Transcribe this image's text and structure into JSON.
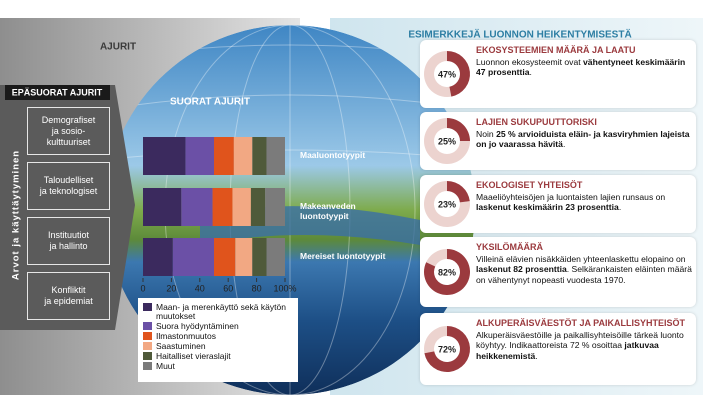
{
  "header": {
    "title": "AJURIT"
  },
  "indirect_drivers": {
    "title": "EPÄSUORAT AJURIT",
    "axis_label": "Arvot ja käyttäytyminen",
    "items": [
      [
        "Demografiset",
        "ja sosio-",
        "kulttuuriset"
      ],
      [
        "Taloudelliset",
        "ja teknologiset"
      ],
      [
        "Instituutiot",
        "ja hallinto"
      ],
      [
        "Konfliktit",
        "ja epidemiat"
      ]
    ]
  },
  "chart_data": {
    "type": "bar",
    "orientation": "horizontal",
    "stacked": true,
    "title": "SUORAT AJURIT",
    "categories": [
      "Maaluontotyypit",
      "Makeanveden luontotyypit",
      "Mereiset luontotyypit"
    ],
    "series": [
      {
        "name": "Maan- ja merenkäyttö sekä käytön muutokset",
        "color": "#3b2a5e",
        "values": [
          30,
          27,
          21
        ]
      },
      {
        "name": "Suora hyödyntäminen",
        "color": "#6b50a6",
        "values": [
          20,
          22,
          29
        ]
      },
      {
        "name": "Ilmastonmuutos",
        "color": "#e0541c",
        "values": [
          14,
          14,
          15
        ]
      },
      {
        "name": "Saastuminen",
        "color": "#f2a883",
        "values": [
          13,
          13,
          12
        ]
      },
      {
        "name": "Haitalliset vieraslajit",
        "color": "#4f5a3a",
        "values": [
          10,
          10,
          10
        ]
      },
      {
        "name": "Muut",
        "color": "#7b7b7b",
        "values": [
          13,
          14,
          13
        ]
      }
    ],
    "xlim": [
      0,
      100
    ],
    "xticks": [
      0,
      20,
      40,
      60,
      80,
      {
        "value": 100,
        "label": "100%"
      }
    ]
  },
  "examples": {
    "title": "ESIMERKKEJÄ LUONNON HEIKENTYMISESTÄ",
    "color": "#9b3a3e",
    "track_color": "#ecd3cf",
    "items": [
      {
        "heading": "EKOSYSTEEMIEN MÄÄRÄ JA LAATU",
        "value": 47,
        "value_label": "47%",
        "text": [
          "Luonnon ekosysteemit ovat ",
          "vähentyneet keskimäärin 47 prosenttia",
          "."
        ]
      },
      {
        "heading": "LAJIEN SUKUPUUTTORISKI",
        "value": 25,
        "value_label": "25%",
        "text": [
          "Noin ",
          "25 % arvioiduista eläin- ja kasviryhmien lajeista on jo vaarassa hävitä",
          "."
        ]
      },
      {
        "heading": "EKOLOGISET YHTEISÖT",
        "value": 23,
        "value_label": "23%",
        "text": [
          "Maaeliöyhteisöjen ja luontaisten lajien runsaus on ",
          "laskenut keskimäärin 23 prosenttia",
          "."
        ]
      },
      {
        "heading": "YKSILÖMÄÄRÄ",
        "value": 82,
        "value_label": "82%",
        "text": [
          "Villeinä elävien nisäkkäiden yhteenlaskettu elopaino on ",
          "laskenut 82 prosenttia",
          ". Selkärankaisten eläinten määrä on vähentynyt nopeasti vuodesta 1970."
        ]
      },
      {
        "heading": "ALKUPERÄISVÄESTÖT JA PAIKALLISYHTEISÖT",
        "value": 72,
        "value_label": "72%",
        "text": [
          "Alkuperäisväestöille ja paikallisyhteisöille tärkeä luonto köyhtyy. Indikaattoreista 72 % osoittaa ",
          "jatkuvaa heikkenemistä",
          "."
        ]
      }
    ]
  }
}
